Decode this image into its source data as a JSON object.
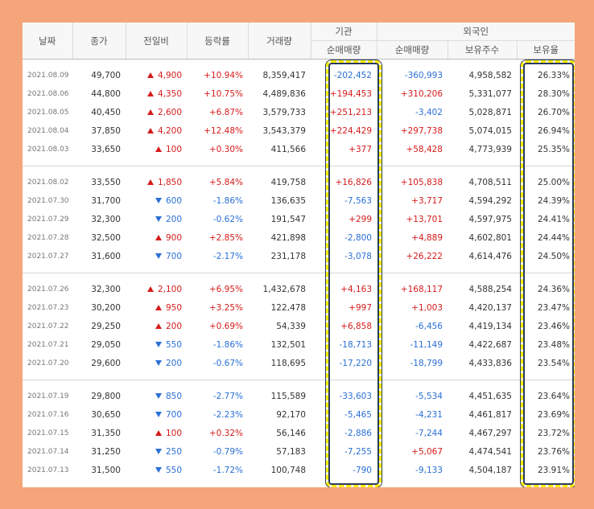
{
  "colors": {
    "background": "#f4a57a",
    "up": "#d61b1b",
    "down": "#2a6fd6",
    "highlight": "#ffeb00",
    "highlight_outline": "#2b3b5a"
  },
  "headers": {
    "date": "날짜",
    "close": "종가",
    "change": "전일비",
    "rate": "등락률",
    "volume": "거래량",
    "institution": "기관",
    "foreign": "외국인",
    "inst_net": "순매매량",
    "foreign_net": "순매매량",
    "foreign_holding": "보유주수",
    "foreign_ratio": "보유율"
  },
  "groups": [
    [
      {
        "date": "2021.08.09",
        "close": "49,700",
        "dir": "up",
        "change": "4,900",
        "rate": "+10.94%",
        "volume": "8,359,417",
        "inst": "-202,452",
        "fnet": "-360,993",
        "fhold": "4,958,582",
        "fratio": "26.33%"
      },
      {
        "date": "2021.08.06",
        "close": "44,800",
        "dir": "up",
        "change": "4,350",
        "rate": "+10.75%",
        "volume": "4,489,836",
        "inst": "+194,453",
        "fnet": "+310,206",
        "fhold": "5,331,077",
        "fratio": "28.30%"
      },
      {
        "date": "2021.08.05",
        "close": "40,450",
        "dir": "up",
        "change": "2,600",
        "rate": "+6.87%",
        "volume": "3,579,733",
        "inst": "+251,213",
        "fnet": "-3,402",
        "fhold": "5,028,871",
        "fratio": "26.70%"
      },
      {
        "date": "2021.08.04",
        "close": "37,850",
        "dir": "up",
        "change": "4,200",
        "rate": "+12.48%",
        "volume": "3,543,379",
        "inst": "+224,429",
        "fnet": "+297,738",
        "fhold": "5,074,015",
        "fratio": "26.94%"
      },
      {
        "date": "2021.08.03",
        "close": "33,650",
        "dir": "up",
        "change": "100",
        "rate": "+0.30%",
        "volume": "411,566",
        "inst": "+377",
        "fnet": "+58,428",
        "fhold": "4,773,939",
        "fratio": "25.35%"
      }
    ],
    [
      {
        "date": "2021.08.02",
        "close": "33,550",
        "dir": "up",
        "change": "1,850",
        "rate": "+5.84%",
        "volume": "419,758",
        "inst": "+16,826",
        "fnet": "+105,838",
        "fhold": "4,708,511",
        "fratio": "25.00%"
      },
      {
        "date": "2021.07.30",
        "close": "31,700",
        "dir": "down",
        "change": "600",
        "rate": "-1.86%",
        "volume": "136,635",
        "inst": "-7,563",
        "fnet": "+3,717",
        "fhold": "4,594,292",
        "fratio": "24.39%"
      },
      {
        "date": "2021.07.29",
        "close": "32,300",
        "dir": "down",
        "change": "200",
        "rate": "-0.62%",
        "volume": "191,547",
        "inst": "+299",
        "fnet": "+13,701",
        "fhold": "4,597,975",
        "fratio": "24.41%"
      },
      {
        "date": "2021.07.28",
        "close": "32,500",
        "dir": "up",
        "change": "900",
        "rate": "+2.85%",
        "volume": "421,898",
        "inst": "-2,800",
        "fnet": "+4,889",
        "fhold": "4,602,801",
        "fratio": "24.44%"
      },
      {
        "date": "2021.07.27",
        "close": "31,600",
        "dir": "down",
        "change": "700",
        "rate": "-2.17%",
        "volume": "231,178",
        "inst": "-3,078",
        "fnet": "+26,222",
        "fhold": "4,614,476",
        "fratio": "24.50%"
      }
    ],
    [
      {
        "date": "2021.07.26",
        "close": "32,300",
        "dir": "up",
        "change": "2,100",
        "rate": "+6.95%",
        "volume": "1,432,678",
        "inst": "+4,163",
        "fnet": "+168,117",
        "fhold": "4,588,254",
        "fratio": "24.36%"
      },
      {
        "date": "2021.07.23",
        "close": "30,200",
        "dir": "up",
        "change": "950",
        "rate": "+3.25%",
        "volume": "122,478",
        "inst": "+997",
        "fnet": "+1,003",
        "fhold": "4,420,137",
        "fratio": "23.47%"
      },
      {
        "date": "2021.07.22",
        "close": "29,250",
        "dir": "up",
        "change": "200",
        "rate": "+0.69%",
        "volume": "54,339",
        "inst": "+6,858",
        "fnet": "-6,456",
        "fhold": "4,419,134",
        "fratio": "23.46%"
      },
      {
        "date": "2021.07.21",
        "close": "29,050",
        "dir": "down",
        "change": "550",
        "rate": "-1.86%",
        "volume": "132,501",
        "inst": "-18,713",
        "fnet": "-11,149",
        "fhold": "4,422,687",
        "fratio": "23.48%"
      },
      {
        "date": "2021.07.20",
        "close": "29,600",
        "dir": "down",
        "change": "200",
        "rate": "-0.67%",
        "volume": "118,695",
        "inst": "-17,220",
        "fnet": "-18,799",
        "fhold": "4,433,836",
        "fratio": "23.54%"
      }
    ],
    [
      {
        "date": "2021.07.19",
        "close": "29,800",
        "dir": "down",
        "change": "850",
        "rate": "-2.77%",
        "volume": "115,589",
        "inst": "-33,603",
        "fnet": "-5,534",
        "fhold": "4,451,635",
        "fratio": "23.64%"
      },
      {
        "date": "2021.07.16",
        "close": "30,650",
        "dir": "down",
        "change": "700",
        "rate": "-2.23%",
        "volume": "92,170",
        "inst": "-5,465",
        "fnet": "-4,231",
        "fhold": "4,461,817",
        "fratio": "23.69%"
      },
      {
        "date": "2021.07.15",
        "close": "31,350",
        "dir": "up",
        "change": "100",
        "rate": "+0.32%",
        "volume": "56,146",
        "inst": "-2,886",
        "fnet": "-7,244",
        "fhold": "4,467,297",
        "fratio": "23.72%"
      },
      {
        "date": "2021.07.14",
        "close": "31,250",
        "dir": "down",
        "change": "250",
        "rate": "-0.79%",
        "volume": "57,183",
        "inst": "-7,255",
        "fnet": "+5,067",
        "fhold": "4,474,541",
        "fratio": "23.76%"
      },
      {
        "date": "2021.07.13",
        "close": "31,500",
        "dir": "down",
        "change": "550",
        "rate": "-1.72%",
        "volume": "100,748",
        "inst": "-790",
        "fnet": "-9,133",
        "fhold": "4,504,187",
        "fratio": "23.91%"
      }
    ]
  ]
}
